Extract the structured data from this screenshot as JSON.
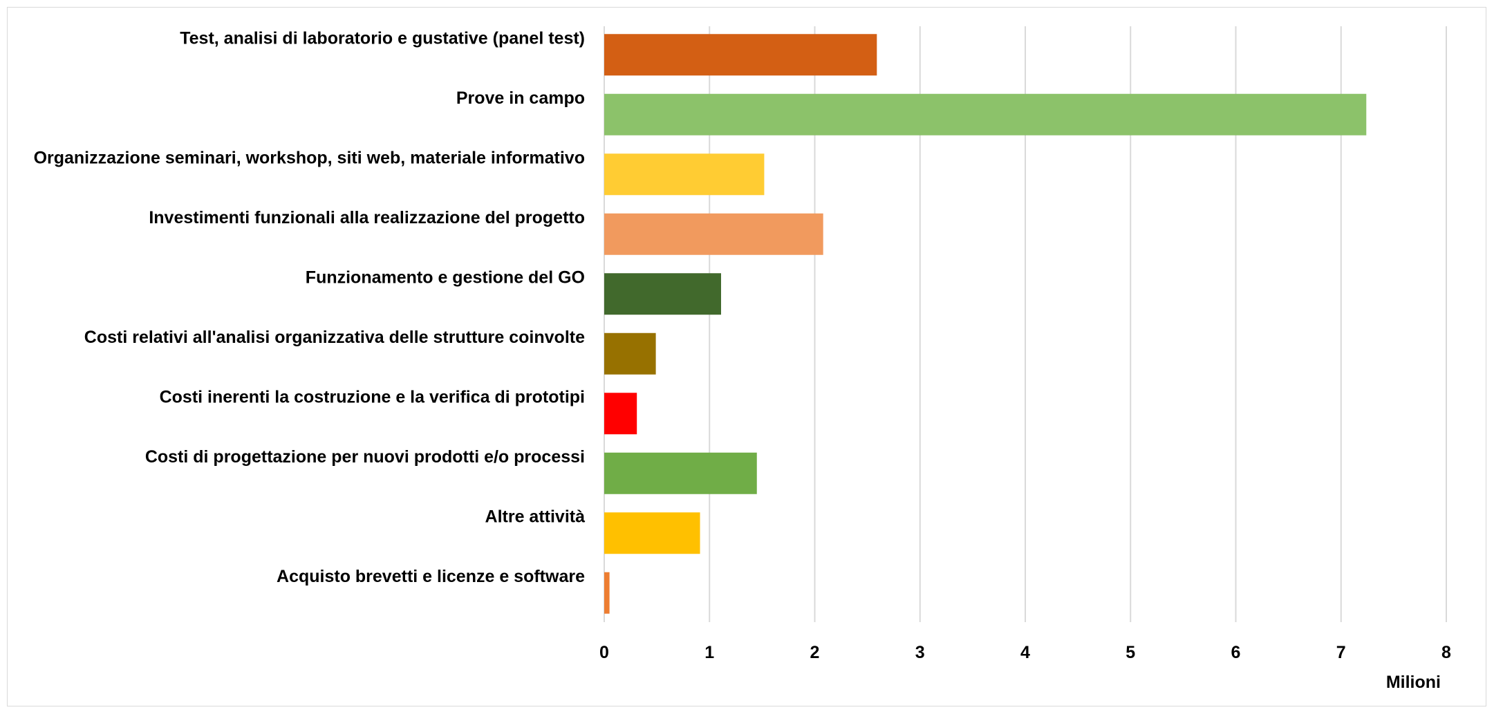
{
  "chart_data": {
    "type": "bar",
    "orientation": "horizontal",
    "categories": [
      "Test, analisi di laboratorio e gustative (panel test)",
      "Prove in campo",
      "Organizzazione seminari, workshop, siti web, materiale informativo",
      "Investimenti funzionali alla realizzazione del progetto",
      "Funzionamento e gestione del GO",
      "Costi relativi all'analisi organizzativa delle strutture coinvolte",
      "Costi inerenti la costruzione e la verifica di prototipi",
      "Costi di progettazione per nuovi prodotti e/o processi",
      "Altre attività",
      "Acquisto brevetti e licenze e software"
    ],
    "values": [
      2.59,
      7.24,
      1.52,
      2.08,
      1.11,
      0.49,
      0.31,
      1.45,
      0.91,
      0.05
    ],
    "colors": [
      "#D35F14",
      "#8CC26A",
      "#FFCC33",
      "#F19A5E",
      "#41692C",
      "#977100",
      "#FF0000",
      "#70AD47",
      "#FFC000",
      "#ED7D31"
    ],
    "xlim": [
      0,
      8
    ],
    "xticks": [
      "0",
      "1",
      "2",
      "3",
      "4",
      "5",
      "6",
      "7",
      "8"
    ],
    "unit_label": "Milioni",
    "grid": true,
    "legend": "none"
  }
}
